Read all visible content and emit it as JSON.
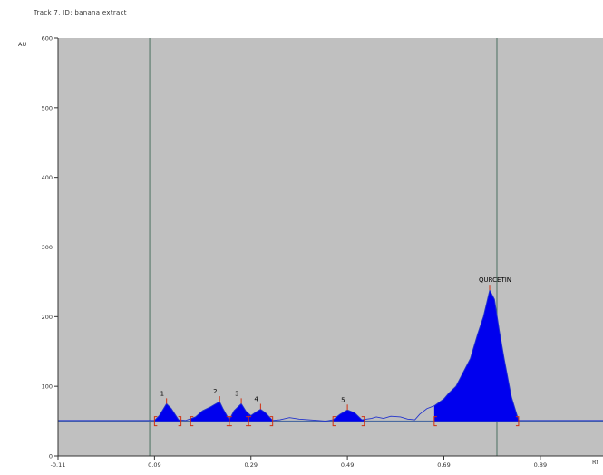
{
  "title": "Track 7, ID: banana extract",
  "colors": {
    "plot_bg": "#c0c0c0",
    "baseline": "#4a6aa0",
    "peak_fill": "#0000ee",
    "trace": "#2233cc",
    "marker": "#d03010",
    "divider": "#4a7060"
  },
  "chart_data": {
    "type": "area",
    "ylabel": "AU",
    "xlabel": "Rf",
    "xlim": [
      -0.11,
      1.02
    ],
    "ylim": [
      0,
      600
    ],
    "x_ticks": [
      "-0.11",
      "0.09",
      "0.29",
      "0.49",
      "0.69",
      "0.89"
    ],
    "y_ticks": [
      "0",
      "100",
      "200",
      "300",
      "400",
      "500",
      "600"
    ],
    "y_tick_values": [
      0,
      100,
      200,
      300,
      400,
      500,
      600
    ],
    "x_tick_values": [
      -0.11,
      0.09,
      0.29,
      0.49,
      0.69,
      0.89
    ],
    "vertical_lines": [
      0.08,
      0.8
    ],
    "baseline_au": 50,
    "trace": [
      [
        -0.11,
        51
      ],
      [
        0.09,
        51
      ],
      [
        0.1,
        58
      ],
      [
        0.115,
        75
      ],
      [
        0.125,
        68
      ],
      [
        0.14,
        52
      ],
      [
        0.155,
        51
      ],
      [
        0.175,
        56
      ],
      [
        0.19,
        65
      ],
      [
        0.205,
        70
      ],
      [
        0.215,
        74
      ],
      [
        0.225,
        78
      ],
      [
        0.232,
        68
      ],
      [
        0.245,
        52
      ],
      [
        0.255,
        65
      ],
      [
        0.27,
        75
      ],
      [
        0.28,
        64
      ],
      [
        0.29,
        58
      ],
      [
        0.3,
        63
      ],
      [
        0.31,
        67
      ],
      [
        0.32,
        62
      ],
      [
        0.335,
        51
      ],
      [
        0.35,
        52
      ],
      [
        0.37,
        55
      ],
      [
        0.39,
        53
      ],
      [
        0.41,
        52
      ],
      [
        0.43,
        51
      ],
      [
        0.445,
        50
      ],
      [
        0.46,
        52
      ],
      [
        0.475,
        60
      ],
      [
        0.49,
        66
      ],
      [
        0.505,
        62
      ],
      [
        0.52,
        52
      ],
      [
        0.54,
        54
      ],
      [
        0.55,
        56
      ],
      [
        0.565,
        54
      ],
      [
        0.58,
        57
      ],
      [
        0.6,
        56
      ],
      [
        0.615,
        53
      ],
      [
        0.63,
        52
      ],
      [
        0.64,
        60
      ],
      [
        0.655,
        68
      ],
      [
        0.67,
        72
      ],
      [
        0.69,
        82
      ],
      [
        0.7,
        90
      ],
      [
        0.715,
        100
      ],
      [
        0.73,
        120
      ],
      [
        0.745,
        140
      ],
      [
        0.76,
        175
      ],
      [
        0.772,
        200
      ],
      [
        0.785,
        238
      ],
      [
        0.795,
        225
      ],
      [
        0.805,
        180
      ],
      [
        0.815,
        140
      ],
      [
        0.83,
        85
      ],
      [
        0.845,
        51
      ],
      [
        0.88,
        51
      ],
      [
        1.02,
        51
      ]
    ],
    "peaks": [
      {
        "label": "1",
        "start": 0.09,
        "end": 0.145,
        "apex": 0.115,
        "apex_au": 75
      },
      {
        "label": "2",
        "start": 0.165,
        "end": 0.245,
        "apex": 0.225,
        "apex_au": 78
      },
      {
        "label": "3",
        "start": 0.245,
        "end": 0.285,
        "apex": 0.27,
        "apex_au": 75
      },
      {
        "label": "4",
        "start": 0.285,
        "end": 0.335,
        "apex": 0.31,
        "apex_au": 67
      },
      {
        "label": "5",
        "start": 0.46,
        "end": 0.525,
        "apex": 0.49,
        "apex_au": 66
      },
      {
        "label": "QURCETIN",
        "start": 0.67,
        "end": 0.845,
        "apex": 0.785,
        "apex_au": 238
      }
    ]
  }
}
